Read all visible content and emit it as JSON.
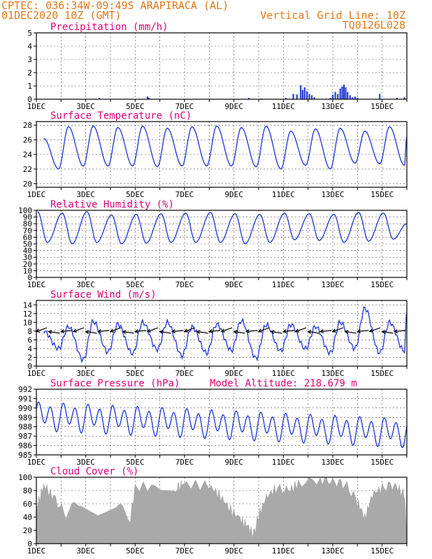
{
  "header": {
    "line1_left": "CPTEC:   036:34W-09:49S  ARAPIRACA (AL)",
    "line2_left": "01DEC2020 10Z (GMT)",
    "line1_right": "Vertical Grid Line: 10Z",
    "line2_right": "TQ0126L028"
  },
  "x_tick_labels": [
    "1DEC",
    "3DEC",
    "5DEC",
    "7DEC",
    "9DEC",
    "11DEC",
    "13DEC",
    "15DEC"
  ],
  "colors": {
    "header": "#e07a1a",
    "title": "#e0007a",
    "series": "#2a3fd6",
    "cloud": "#a9a9a9"
  },
  "chart_data": [
    {
      "type": "bar",
      "title": "Precipitation (mm/h)",
      "ylim": [
        0,
        5
      ],
      "y_ticks": [
        0,
        1,
        2,
        3,
        4,
        5
      ],
      "x_day_start": 1,
      "x_day_end": 16,
      "points": [
        [
          3.55,
          0.1
        ],
        [
          5.5,
          0.2
        ],
        [
          5.55,
          0.1
        ],
        [
          9.6,
          0.1
        ],
        [
          10.1,
          0.05
        ],
        [
          11.1,
          0.1
        ],
        [
          11.4,
          0.4
        ],
        [
          11.55,
          0.35
        ],
        [
          11.7,
          1.05
        ],
        [
          11.78,
          0.7
        ],
        [
          11.86,
          0.9
        ],
        [
          11.95,
          0.6
        ],
        [
          12.05,
          0.4
        ],
        [
          12.15,
          0.3
        ],
        [
          12.25,
          0.15
        ],
        [
          12.9,
          0.1
        ],
        [
          13.0,
          0.35
        ],
        [
          13.1,
          0.55
        ],
        [
          13.2,
          0.4
        ],
        [
          13.3,
          0.8
        ],
        [
          13.38,
          0.95
        ],
        [
          13.45,
          1.1
        ],
        [
          13.52,
          0.9
        ],
        [
          13.6,
          0.55
        ],
        [
          13.7,
          0.3
        ],
        [
          13.8,
          0.15
        ],
        [
          13.9,
          0.2
        ],
        [
          14.0,
          0.1
        ],
        [
          14.9,
          0.4
        ],
        [
          15.6,
          0.1
        ],
        [
          15.9,
          0.15
        ]
      ]
    },
    {
      "type": "line",
      "title": "Surface Temperature (nC)",
      "ylim": [
        19.5,
        28.5
      ],
      "y_ticks": [
        20,
        22,
        24,
        26,
        28
      ],
      "x_day_start": 1,
      "x_day_end": 16,
      "daily_max": [
        26.2,
        27.8,
        27.9,
        27.7,
        27.9,
        27.6,
        27.8,
        27.9,
        27.7,
        27.9,
        27.2,
        27.5,
        27.6,
        27.2,
        27.8,
        27.8,
        26.4
      ],
      "daily_min": [
        20.2,
        22.0,
        22.4,
        22.4,
        22.4,
        22.3,
        22.4,
        22.4,
        22.4,
        22.3,
        22.0,
        22.5,
        22.0,
        22.8,
        22.7,
        22.5
      ]
    },
    {
      "type": "line",
      "title": "Relative Humidity (%)",
      "ylim": [
        0,
        100
      ],
      "y_ticks": [
        0,
        10,
        20,
        30,
        40,
        50,
        60,
        70,
        80,
        90,
        100
      ],
      "x_day_start": 1,
      "x_day_end": 16,
      "daily_max": [
        98,
        96,
        98,
        93,
        94,
        95,
        96,
        97,
        95,
        94,
        96,
        95,
        94,
        97,
        96,
        88,
        80
      ],
      "daily_min": [
        58,
        52,
        50,
        52,
        50,
        51,
        52,
        52,
        52,
        50,
        52,
        56,
        55,
        52,
        54,
        57
      ]
    },
    {
      "type": "line",
      "title": "Surface Wind (m/s)",
      "ylim": [
        0,
        15
      ],
      "y_ticks": [
        0,
        2,
        4,
        6,
        8,
        10,
        12,
        14
      ],
      "x_day_start": 1,
      "x_day_end": 16,
      "daily_max": [
        8.0,
        9.0,
        10.2,
        9.6,
        10.0,
        10.0,
        9.0,
        9.6,
        10.4,
        9.5,
        9.5,
        9.0,
        10.0,
        13.2,
        10.0,
        10.5,
        12.0
      ],
      "daily_min": [
        5.5,
        4.0,
        1.4,
        3.2,
        2.8,
        3.8,
        2.4,
        3.0,
        3.6,
        1.8,
        3.5,
        4.0,
        3.0,
        4.0,
        3.0,
        3.5
      ],
      "wind_arrows_y": 7.9
    },
    {
      "type": "line",
      "title": "Surface Pressure (hPa)",
      "annotation": "Model Altitude: 218.679 m",
      "ylim": [
        985,
        992
      ],
      "y_ticks": [
        985,
        986,
        987,
        988,
        989,
        990,
        991,
        992
      ],
      "x_day_start": 1,
      "x_day_end": 16
    },
    {
      "type": "area",
      "title": "Cloud Cover (%)",
      "ylim": [
        0,
        100
      ],
      "y_ticks": [
        0,
        20,
        40,
        60,
        80,
        100
      ],
      "x_day_start": 1,
      "x_day_end": 16,
      "segments": [
        [
          1.0,
          55
        ],
        [
          1.3,
          90
        ],
        [
          1.7,
          70
        ],
        [
          2.2,
          45
        ],
        [
          2.8,
          65
        ],
        [
          3.5,
          50
        ],
        [
          4.2,
          60
        ],
        [
          4.8,
          40
        ],
        [
          5.0,
          86
        ],
        [
          6.0,
          86
        ],
        [
          6.7,
          86
        ],
        [
          6.9,
          90
        ],
        [
          8.0,
          88
        ],
        [
          8.4,
          75
        ],
        [
          8.8,
          55
        ],
        [
          9.2,
          40
        ],
        [
          9.5,
          30
        ],
        [
          9.8,
          15
        ],
        [
          10.0,
          45
        ],
        [
          10.3,
          70
        ],
        [
          10.7,
          85
        ],
        [
          11.2,
          80
        ],
        [
          11.6,
          92
        ],
        [
          12.5,
          98
        ],
        [
          13.0,
          95
        ],
        [
          13.5,
          90
        ],
        [
          14.0,
          65
        ],
        [
          14.3,
          40
        ],
        [
          14.6,
          75
        ],
        [
          15.0,
          85
        ],
        [
          15.5,
          90
        ],
        [
          15.9,
          75
        ],
        [
          16.0,
          20
        ]
      ]
    }
  ]
}
